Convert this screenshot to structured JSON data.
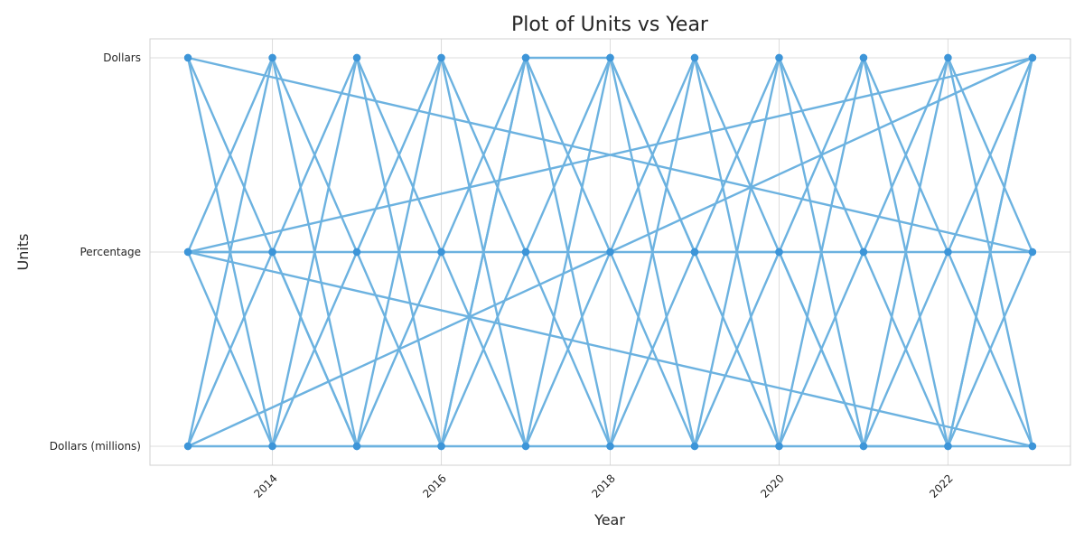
{
  "chart_data": {
    "type": "line",
    "title": "Plot of Units vs Year",
    "xlabel": "Year",
    "ylabel": "Units",
    "xlim": [
      2012.55,
      2023.45
    ],
    "x_ticks": [
      2014,
      2016,
      2018,
      2020,
      2022
    ],
    "y_categories": [
      "Dollars (millions)",
      "Percentage",
      "Dollars"
    ],
    "grid": true,
    "legend": "none",
    "colors": {
      "line": "#6cb2e0",
      "marker": "#3d95d8",
      "grid": "#dcdcdc",
      "frame": "#d0d0d0"
    },
    "series": [
      {
        "x": [
          2013,
          2014,
          2015,
          2016,
          2017,
          2018,
          2019,
          2020,
          2021,
          2022,
          2023,
          2013,
          2014,
          2015,
          2016,
          2017,
          2018,
          2019,
          2020,
          2021,
          2022,
          2023,
          2013,
          2014,
          2015,
          2016,
          2017,
          2018,
          2019,
          2020,
          2021,
          2022,
          2023,
          2013,
          2014,
          2015,
          2016,
          2017,
          2018,
          2019,
          2020,
          2021,
          2022,
          2023,
          2013,
          2014,
          2015,
          2016,
          2017,
          2018,
          2019,
          2020,
          2021,
          2022,
          2023,
          2013,
          2014,
          2015,
          2016,
          2017,
          2018,
          2019,
          2020,
          2021,
          2022,
          2023,
          2013,
          2014,
          2015,
          2016,
          2017,
          2018,
          2019,
          2020,
          2021,
          2022,
          2023
        ],
        "y": [
          "Dollars",
          "Dollars (millions)",
          "Percentage",
          "Dollars",
          "Dollars (millions)",
          "Percentage",
          "Dollars",
          "Dollars (millions)",
          "Percentage",
          "Dollars",
          "Dollars (millions)",
          "Percentage",
          "Dollars",
          "Dollars (millions)",
          "Percentage",
          "Dollars",
          "Dollars (millions)",
          "Percentage",
          "Dollars",
          "Dollars (millions)",
          "Percentage",
          "Dollars",
          "Dollars (millions)",
          "Percentage",
          "Dollars",
          "Dollars (millions)",
          "Percentage",
          "Dollars",
          "Dollars (millions)",
          "Percentage",
          "Dollars",
          "Dollars (millions)",
          "Percentage",
          "Dollars",
          "Percentage",
          "Dollars (millions)",
          "Dollars",
          "Percentage",
          "Dollars (millions)",
          "Dollars",
          "Percentage",
          "Dollars (millions)",
          "Dollars",
          "Percentage",
          "Percentage",
          "Dollars (millions)",
          "Dollars",
          "Percentage",
          "Dollars (millions)",
          "Dollars",
          "Percentage",
          "Dollars (millions)",
          "Dollars",
          "Percentage",
          "Dollars (millions)",
          "Dollars (millions)",
          "Dollars",
          "Percentage",
          "Dollars (millions)",
          "Dollars",
          "Percentage",
          "Dollars (millions)",
          "Dollars",
          "Percentage",
          "Dollars (millions)",
          "Dollars",
          "Percentage",
          "Percentage",
          "Dollars (millions)",
          "Dollars (millions)",
          "Dollars",
          "Dollars",
          "Percentage",
          "Percentage",
          "Dollars (millions)",
          "Dollars (millions)",
          "Dollars"
        ]
      }
    ]
  }
}
